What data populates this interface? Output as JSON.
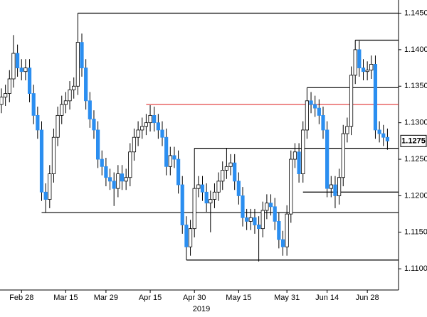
{
  "chart_data": {
    "type": "candlestick",
    "categories": [
      null,
      null,
      null,
      null,
      null,
      "Feb 28",
      null,
      null,
      null,
      null,
      null,
      null,
      null,
      null,
      null,
      null,
      "Mar 15",
      null,
      null,
      null,
      null,
      null,
      null,
      null,
      null,
      null,
      "Mar 29",
      null,
      null,
      null,
      null,
      null,
      null,
      null,
      null,
      null,
      null,
      "Apr 15",
      null,
      null,
      null,
      null,
      null,
      null,
      null,
      null,
      null,
      null,
      "Apr 30",
      null,
      null,
      null,
      null,
      null,
      null,
      null,
      null,
      null,
      null,
      "May 15",
      null,
      null,
      null,
      null,
      null,
      null,
      null,
      null,
      null,
      null,
      null,
      "May 31",
      null,
      null,
      null,
      null,
      null,
      null,
      null,
      null,
      null,
      "Jun 14",
      null,
      null,
      null,
      null,
      null,
      null,
      null,
      null,
      null,
      "Jun 28",
      null,
      null,
      null,
      null,
      null
    ],
    "x_sublabel": "2019",
    "open": [
      1.1325,
      1.1335,
      1.134,
      1.136,
      1.1395,
      1.1375,
      1.137,
      1.1375,
      1.134,
      1.131,
      1.129,
      1.1205,
      1.1195,
      1.123,
      1.128,
      1.131,
      1.1325,
      1.133,
      1.1345,
      1.135,
      1.141,
      1.1375,
      1.133,
      1.1305,
      1.129,
      1.125,
      1.124,
      1.1225,
      1.122,
      1.121,
      1.123,
      1.122,
      1.1225,
      1.126,
      1.128,
      1.129,
      1.1295,
      1.13,
      1.131,
      1.13,
      1.129,
      1.128,
      1.124,
      1.1255,
      1.125,
      1.1215,
      1.116,
      1.113,
      1.1155,
      1.121,
      1.1215,
      1.1205,
      1.119,
      1.1195,
      1.1205,
      1.122,
      1.1235,
      1.124,
      1.1245,
      1.122,
      1.12,
      1.117,
      1.1165,
      1.117,
      1.116,
      1.1155,
      1.118,
      1.119,
      1.1185,
      1.1165,
      1.114,
      1.113,
      1.1175,
      1.125,
      1.126,
      1.123,
      1.129,
      1.133,
      1.1325,
      1.132,
      1.131,
      1.129,
      1.121,
      1.1215,
      1.12,
      1.1225,
      1.1285,
      1.1295,
      1.1365,
      1.14,
      1.1375,
      1.137,
      1.1372,
      1.138,
      1.129,
      1.1285,
      1.128
    ],
    "high": [
      1.1347,
      1.1352,
      1.1372,
      1.142,
      1.1407,
      1.1387,
      1.1387,
      1.1387,
      1.1352,
      1.1322,
      1.1302,
      1.1217,
      1.1242,
      1.1292,
      1.1322,
      1.1337,
      1.1342,
      1.1357,
      1.1362,
      1.145,
      1.1422,
      1.1387,
      1.1342,
      1.1317,
      1.1302,
      1.1262,
      1.1252,
      1.1237,
      1.1232,
      1.1242,
      1.1242,
      1.1237,
      1.1272,
      1.1292,
      1.1302,
      1.1307,
      1.1312,
      1.1324,
      1.1322,
      1.1312,
      1.1302,
      1.1292,
      1.1267,
      1.1267,
      1.1262,
      1.1227,
      1.1172,
      1.1167,
      1.1265,
      1.1227,
      1.1227,
      1.1217,
      1.1207,
      1.1217,
      1.1232,
      1.1247,
      1.1265,
      1.1257,
      1.1257,
      1.1232,
      1.1212,
      1.1182,
      1.1182,
      1.1182,
      1.1172,
      1.1192,
      1.1202,
      1.1202,
      1.1197,
      1.1177,
      1.1152,
      1.1187,
      1.1262,
      1.1272,
      1.1272,
      1.1302,
      1.1348,
      1.1342,
      1.1337,
      1.1332,
      1.1322,
      1.1302,
      1.1227,
      1.1227,
      1.1237,
      1.1297,
      1.1307,
      1.1377,
      1.1413,
      1.1412,
      1.1387,
      1.1384,
      1.1392,
      1.1392,
      1.1302,
      1.1297,
      1.1292
    ],
    "low": [
      1.1313,
      1.1323,
      1.1328,
      1.1348,
      1.1363,
      1.1358,
      1.1358,
      1.1328,
      1.1298,
      1.1278,
      1.1193,
      1.1177,
      1.1183,
      1.1218,
      1.1268,
      1.1298,
      1.1313,
      1.1318,
      1.1333,
      1.1338,
      1.1363,
      1.1318,
      1.1293,
      1.1278,
      1.1238,
      1.1228,
      1.1213,
      1.1208,
      1.1186,
      1.1198,
      1.1208,
      1.1208,
      1.1213,
      1.1248,
      1.1268,
      1.1278,
      1.1283,
      1.1288,
      1.1288,
      1.1278,
      1.1268,
      1.1228,
      1.1228,
      1.1238,
      1.1203,
      1.1148,
      1.1112,
      1.1118,
      1.1143,
      1.1198,
      1.1193,
      1.1178,
      1.115,
      1.1183,
      1.1193,
      1.1208,
      1.1223,
      1.1228,
      1.1208,
      1.1188,
      1.1158,
      1.1153,
      1.1153,
      1.1148,
      1.111,
      1.1143,
      1.1168,
      1.1173,
      1.1153,
      1.1128,
      1.1118,
      1.1118,
      1.1163,
      1.1238,
      1.1218,
      1.1218,
      1.1278,
      1.1313,
      1.1308,
      1.1298,
      1.1278,
      1.1198,
      1.1198,
      1.1183,
      1.1188,
      1.1213,
      1.1273,
      1.1283,
      1.1353,
      1.1363,
      1.1358,
      1.1358,
      1.136,
      1.1278,
      1.1273,
      1.1268,
      1.1263
    ],
    "close": [
      1.1335,
      1.134,
      1.136,
      1.1395,
      1.1375,
      1.137,
      1.1375,
      1.134,
      1.131,
      1.129,
      1.1205,
      1.1195,
      1.123,
      1.128,
      1.131,
      1.1325,
      1.133,
      1.1345,
      1.135,
      1.141,
      1.1375,
      1.133,
      1.1305,
      1.129,
      1.125,
      1.124,
      1.1225,
      1.122,
      1.121,
      1.123,
      1.122,
      1.1225,
      1.126,
      1.128,
      1.129,
      1.1295,
      1.13,
      1.131,
      1.13,
      1.129,
      1.128,
      1.124,
      1.1255,
      1.125,
      1.1215,
      1.116,
      1.113,
      1.1155,
      1.121,
      1.1215,
      1.1205,
      1.119,
      1.1195,
      1.1205,
      1.122,
      1.1235,
      1.124,
      1.1245,
      1.122,
      1.12,
      1.117,
      1.1165,
      1.117,
      1.116,
      1.1155,
      1.118,
      1.119,
      1.1185,
      1.1165,
      1.114,
      1.113,
      1.1175,
      1.125,
      1.126,
      1.123,
      1.129,
      1.133,
      1.1325,
      1.132,
      1.131,
      1.129,
      1.121,
      1.1215,
      1.12,
      1.1225,
      1.1285,
      1.1295,
      1.1365,
      1.14,
      1.1375,
      1.137,
      1.1372,
      1.138,
      1.129,
      1.1285,
      1.128,
      1.1275
    ],
    "up_color": "#ffffff",
    "down_color": "#2b8ef0",
    "wick_color": "#000000",
    "levels": [
      {
        "value": 1.145,
        "color": "#000000"
      },
      {
        "value": 1.1413,
        "color": "#000000"
      },
      {
        "value": 1.1348,
        "color": "#000000"
      },
      {
        "value": 1.1325,
        "color": "#e03030"
      },
      {
        "value": 1.1265,
        "color": "#000000"
      },
      {
        "value": 1.1205,
        "color": "#000000"
      },
      {
        "value": 1.1177,
        "color": "#000000"
      },
      {
        "value": 1.1112,
        "color": "#000000"
      }
    ],
    "last_price": 1.1275,
    "ylim": [
      1.1071,
      1.1468
    ],
    "yticks": [
      {
        "value": 1.11,
        "label": "1.1100"
      },
      {
        "value": 1.115,
        "label": "1.1150"
      },
      {
        "value": 1.12,
        "label": "1.1200"
      },
      {
        "value": 1.125,
        "label": "1.1250"
      },
      {
        "value": 1.13,
        "label": "1.1300"
      },
      {
        "value": 1.135,
        "label": "1.1350"
      },
      {
        "value": 1.14,
        "label": "1.1400"
      },
      {
        "value": 1.145,
        "label": "1.1450"
      }
    ]
  }
}
